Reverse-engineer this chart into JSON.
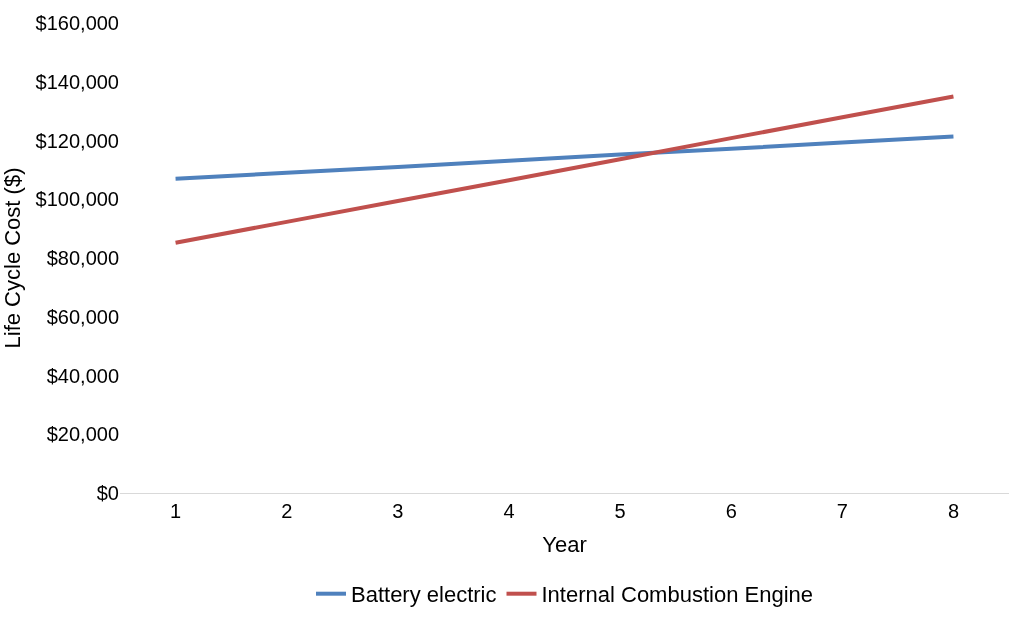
{
  "chart_data": {
    "type": "line",
    "xlabel": "Year",
    "ylabel": "Life Cycle Cost ($)",
    "categories": [
      "1",
      "2",
      "3",
      "4",
      "5",
      "6",
      "7",
      "8"
    ],
    "series": [
      {
        "name": "Battery electric",
        "color": "#4f81bd",
        "values": [
          107000,
          109000,
          111000,
          113100,
          115200,
          117200,
          119300,
          121400
        ]
      },
      {
        "name": "Internal Combustion Engine",
        "color": "#c0504d",
        "values": [
          85200,
          92300,
          99400,
          106500,
          113600,
          120800,
          127900,
          135000
        ]
      }
    ],
    "ylim": [
      0,
      160000
    ],
    "yticks": [
      {
        "value": 0,
        "label": "$0"
      },
      {
        "value": 20000,
        "label": "$20,000"
      },
      {
        "value": 40000,
        "label": "$40,000"
      },
      {
        "value": 60000,
        "label": "$60,000"
      },
      {
        "value": 80000,
        "label": "$80,000"
      },
      {
        "value": 100000,
        "label": "$100,000"
      },
      {
        "value": 120000,
        "label": "$120,000"
      },
      {
        "value": 140000,
        "label": "$140,000"
      },
      {
        "value": 160000,
        "label": "$160,000"
      }
    ],
    "grid": false,
    "legend": "bottom",
    "marker": "none",
    "line_style": "solid"
  }
}
